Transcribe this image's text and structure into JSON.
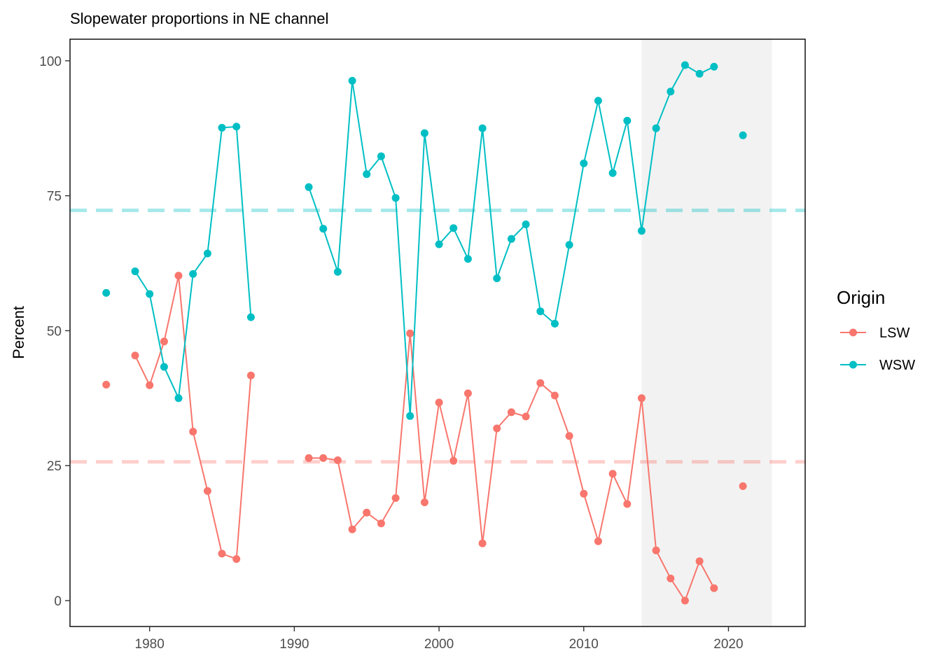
{
  "chart_data": {
    "type": "line",
    "title": "Slopewater proportions in NE channel",
    "xlabel": "",
    "ylabel": "Percent",
    "xlim": [
      1974.5,
      2025.3
    ],
    "ylim": [
      -4.8,
      104.0
    ],
    "x_ticks": [
      1980,
      1990,
      2000,
      2010,
      2020
    ],
    "y_ticks": [
      0,
      25,
      50,
      75,
      100
    ],
    "grid": false,
    "legend": {
      "title": "Origin",
      "placement": "right"
    },
    "shaded_region": {
      "x_start": 2014,
      "x_end": 2023,
      "color": "#f2f2f2"
    },
    "reference_lines": [
      {
        "series": "WSW",
        "y": 72.3,
        "style": "dashed",
        "color": "#00bfc4",
        "opacity": 0.35
      },
      {
        "series": "LSW",
        "y": 25.7,
        "style": "dashed",
        "color": "#f8766d",
        "opacity": 0.35
      }
    ],
    "series": [
      {
        "name": "LSW",
        "color": "#f8766d",
        "points": [
          [
            1977,
            40.0
          ],
          [
            1979,
            45.4
          ],
          [
            1980,
            39.9
          ],
          [
            1981,
            48.0
          ],
          [
            1982,
            60.2
          ],
          [
            1983,
            31.3
          ],
          [
            1984,
            20.3
          ],
          [
            1985,
            8.7
          ],
          [
            1986,
            7.7
          ],
          [
            1987,
            41.7
          ],
          [
            1991,
            26.4
          ],
          [
            1992,
            26.4
          ],
          [
            1993,
            26.0
          ],
          [
            1994,
            13.2
          ],
          [
            1995,
            16.3
          ],
          [
            1996,
            14.3
          ],
          [
            1997,
            19.0
          ],
          [
            1998,
            49.5
          ],
          [
            1999,
            18.2
          ],
          [
            2000,
            36.7
          ],
          [
            2001,
            25.9
          ],
          [
            2002,
            38.4
          ],
          [
            2003,
            10.6
          ],
          [
            2004,
            31.9
          ],
          [
            2005,
            34.9
          ],
          [
            2006,
            34.1
          ],
          [
            2007,
            40.3
          ],
          [
            2008,
            38.0
          ],
          [
            2009,
            30.5
          ],
          [
            2010,
            19.8
          ],
          [
            2011,
            11.0
          ],
          [
            2012,
            23.5
          ],
          [
            2013,
            17.9
          ],
          [
            2014,
            37.5
          ],
          [
            2015,
            9.3
          ],
          [
            2016,
            4.1
          ],
          [
            2017,
            0.0
          ],
          [
            2018,
            7.3
          ],
          [
            2019,
            2.3
          ],
          [
            2021,
            21.2
          ]
        ]
      },
      {
        "name": "WSW",
        "color": "#00bfc4",
        "points": [
          [
            1977,
            57.0
          ],
          [
            1979,
            61.0
          ],
          [
            1980,
            56.8
          ],
          [
            1981,
            43.3
          ],
          [
            1982,
            37.5
          ],
          [
            1983,
            60.5
          ],
          [
            1984,
            64.3
          ],
          [
            1985,
            87.6
          ],
          [
            1986,
            87.8
          ],
          [
            1987,
            52.5
          ],
          [
            1991,
            76.6
          ],
          [
            1992,
            68.9
          ],
          [
            1993,
            60.9
          ],
          [
            1994,
            96.3
          ],
          [
            1995,
            79.0
          ],
          [
            1996,
            82.3
          ],
          [
            1997,
            74.6
          ],
          [
            1998,
            34.2
          ],
          [
            1999,
            86.6
          ],
          [
            2000,
            66.0
          ],
          [
            2001,
            69.0
          ],
          [
            2002,
            63.3
          ],
          [
            2003,
            87.5
          ],
          [
            2004,
            59.7
          ],
          [
            2005,
            67.0
          ],
          [
            2006,
            69.7
          ],
          [
            2007,
            53.6
          ],
          [
            2008,
            51.3
          ],
          [
            2009,
            65.9
          ],
          [
            2010,
            81.0
          ],
          [
            2011,
            92.6
          ],
          [
            2012,
            79.2
          ],
          [
            2013,
            88.9
          ],
          [
            2014,
            68.5
          ],
          [
            2015,
            87.5
          ],
          [
            2016,
            94.3
          ],
          [
            2017,
            99.2
          ],
          [
            2018,
            97.6
          ],
          [
            2019,
            98.9
          ],
          [
            2021,
            86.2
          ]
        ]
      }
    ]
  }
}
